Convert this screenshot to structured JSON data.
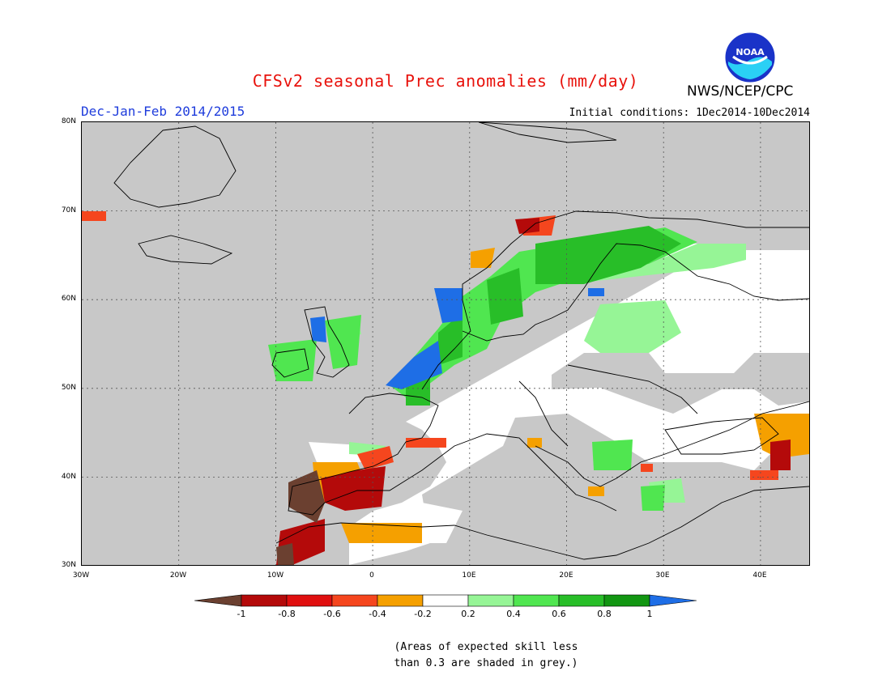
{
  "header": {
    "title": "CFSv2 seasonal Prec anomalies (mm/day)",
    "period": "Dec-Jan-Feb 2014/2015",
    "initial_conditions": "Initial conditions: 1Dec2014-10Dec2014",
    "agency": "NWS/NCEP/CPC",
    "logo_text": "NOAA"
  },
  "map": {
    "lat_labels": [
      "80N",
      "70N",
      "60N",
      "50N",
      "40N",
      "30N"
    ],
    "lon_labels": [
      "30W",
      "20W",
      "10W",
      "0",
      "10E",
      "20E",
      "30E",
      "40E"
    ],
    "background_color": "#c8c8c8"
  },
  "legend": {
    "labels": [
      "-1",
      "-0.8",
      "-0.6",
      "-0.4",
      "-0.2",
      "0.2",
      "0.4",
      "0.6",
      "0.8",
      "1"
    ],
    "colors": [
      "#6b4030",
      "#b40a0a",
      "#e00f0f",
      "#f5461e",
      "#f5a000",
      "#ffffff",
      "#96f596",
      "#50e650",
      "#28be28",
      "#129612",
      "#1e6ee6"
    ]
  },
  "note": {
    "line1": "(Areas of expected skill less",
    "line2": "than 0.3 are shaded in grey.)"
  }
}
